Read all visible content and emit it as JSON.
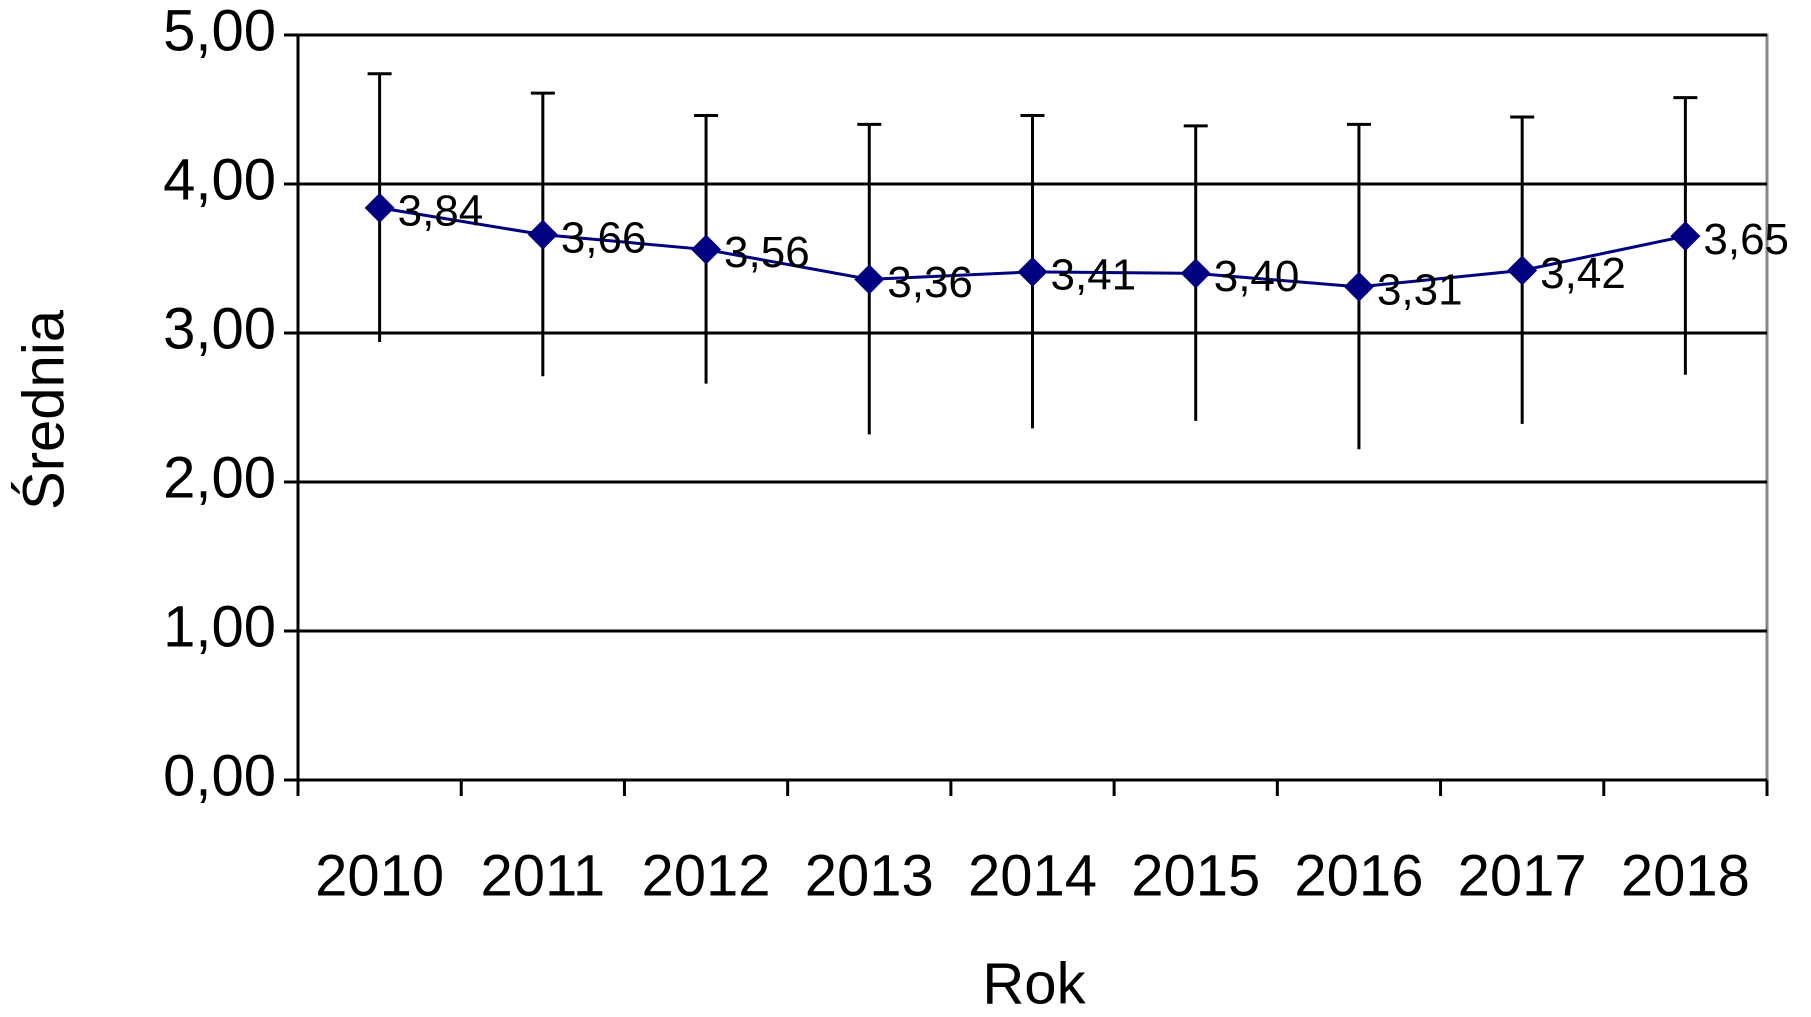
{
  "chart_data": {
    "type": "line",
    "categories": [
      "2010",
      "2011",
      "2012",
      "2013",
      "2014",
      "2015",
      "2016",
      "2017",
      "2018"
    ],
    "values": [
      3.84,
      3.66,
      3.56,
      3.36,
      3.41,
      3.4,
      3.31,
      3.42,
      3.65
    ],
    "value_labels": [
      "3,84",
      "3,66",
      "3,56",
      "3,36",
      "3,41",
      "3,40",
      "3,31",
      "3,42",
      "3,65"
    ],
    "errors": [
      0.9,
      0.95,
      0.9,
      1.04,
      1.05,
      0.99,
      1.09,
      1.03,
      0.93
    ],
    "color": "#000080",
    "x_label": "Rok",
    "y_label": "Średnia",
    "ylim": [
      0,
      5
    ],
    "yticks": [
      {
        "value": 0,
        "label": "0,00"
      },
      {
        "value": 1,
        "label": "1,00"
      },
      {
        "value": 2,
        "label": "2,00"
      },
      {
        "value": 3,
        "label": "3,00"
      },
      {
        "value": 4,
        "label": "4,00"
      },
      {
        "value": 5,
        "label": "5,00"
      }
    ],
    "grid": true
  }
}
